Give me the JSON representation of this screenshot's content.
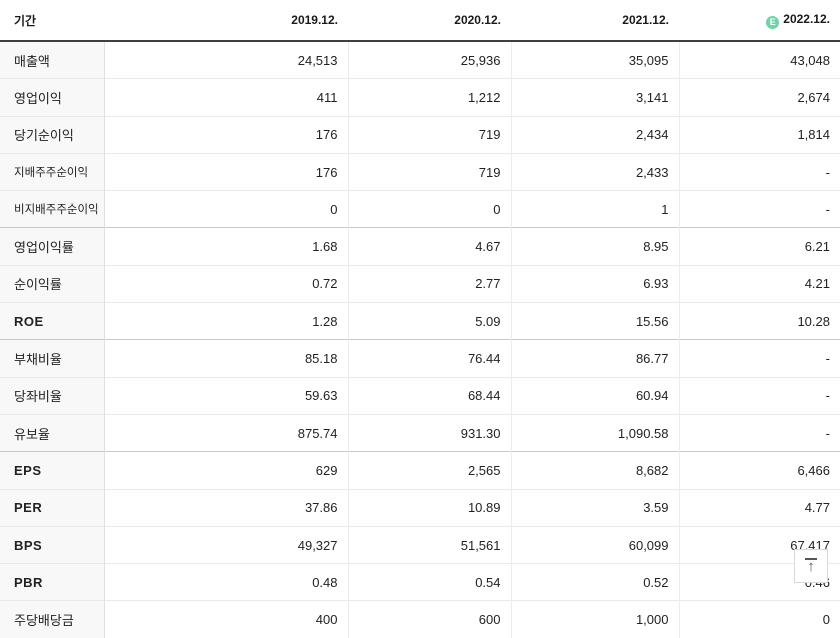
{
  "table": {
    "period_label": "기간",
    "columns": [
      "2019.12.",
      "2020.12.",
      "2021.12.",
      "2022.12."
    ],
    "estimate_badge": "E",
    "rows": [
      {
        "label": "매출액",
        "values": [
          "24,513",
          "25,936",
          "35,095",
          "43,048"
        ]
      },
      {
        "label": "영업이익",
        "values": [
          "411",
          "1,212",
          "3,141",
          "2,674"
        ]
      },
      {
        "label": "당기순이익",
        "values": [
          "176",
          "719",
          "2,434",
          "1,814"
        ]
      },
      {
        "label": "지배주주순이익",
        "small": true,
        "values": [
          "176",
          "719",
          "2,433",
          "-"
        ]
      },
      {
        "label": "비지배주주순이익",
        "small": true,
        "values": [
          "0",
          "0",
          "1",
          "-"
        ]
      },
      {
        "label": "영업이익률",
        "group_start": true,
        "values": [
          "1.68",
          "4.67",
          "8.95",
          "6.21"
        ]
      },
      {
        "label": "순이익률",
        "values": [
          "0.72",
          "2.77",
          "6.93",
          "4.21"
        ]
      },
      {
        "label": "ROE",
        "bold": true,
        "values": [
          "1.28",
          "5.09",
          "15.56",
          "10.28"
        ]
      },
      {
        "label": "부채비율",
        "group_start": true,
        "values": [
          "85.18",
          "76.44",
          "86.77",
          "-"
        ]
      },
      {
        "label": "당좌비율",
        "values": [
          "59.63",
          "68.44",
          "60.94",
          "-"
        ]
      },
      {
        "label": "유보율",
        "values": [
          "875.74",
          "931.30",
          "1,090.58",
          "-"
        ]
      },
      {
        "label": "EPS",
        "bold": true,
        "group_start": true,
        "values": [
          "629",
          "2,565",
          "8,682",
          "6,466"
        ]
      },
      {
        "label": "PER",
        "bold": true,
        "values": [
          "37.86",
          "10.89",
          "3.59",
          "4.77"
        ]
      },
      {
        "label": "BPS",
        "bold": true,
        "values": [
          "49,327",
          "51,561",
          "60,099",
          "67,417"
        ]
      },
      {
        "label": "PBR",
        "bold": true,
        "values": [
          "0.48",
          "0.54",
          "0.52",
          "0.46"
        ]
      },
      {
        "label": "주당배당금",
        "values": [
          "400",
          "600",
          "1,000",
          "0"
        ]
      }
    ]
  },
  "scroll_top": {
    "arrow_glyph": "↑"
  },
  "colors": {
    "estimate_badge": "#6fd3a8",
    "header_border": "#404040",
    "row_border": "#e9e9e9",
    "group_border": "#c9c9c9",
    "label_column_bg": "#f8f8f8",
    "text": "#222222"
  }
}
